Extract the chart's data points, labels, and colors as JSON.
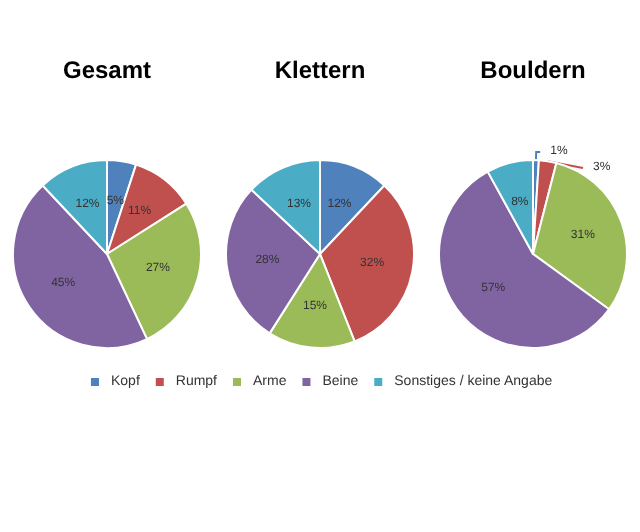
{
  "chart_data": [
    {
      "type": "pie",
      "title": "Gesamt",
      "categories": [
        null,
        null,
        null,
        null,
        null
      ],
      "values": [
        5,
        11,
        27,
        45,
        12
      ],
      "value_labels": [
        "5%",
        "11%",
        "27%",
        "45%",
        "12%"
      ],
      "colors": [
        "#4f81bd",
        "#c0504d",
        "#9bbb59",
        "#8064a2",
        "#4bacc6"
      ]
    },
    {
      "type": "pie",
      "title": "Klettern",
      "categories": [
        "Kopf",
        "Rumpf",
        "Arme",
        "Beine",
        "Sonstiges / keine Angabe"
      ],
      "values": [
        12,
        32,
        15,
        28,
        13
      ],
      "value_labels": [
        "12%",
        "32%",
        "15%",
        "28%",
        "13%"
      ],
      "colors": [
        "#4f81bd",
        "#c0504d",
        "#9bbb59",
        "#8064a2",
        "#4bacc6"
      ],
      "legend": "bottom"
    },
    {
      "type": "pie",
      "title": "Bouldern",
      "categories": [
        null,
        null,
        null,
        null,
        null
      ],
      "values": [
        1,
        3,
        31,
        57,
        8
      ],
      "value_labels": [
        "1%",
        "3%",
        "31%",
        "57%",
        "8%"
      ],
      "colors": [
        "#4f81bd",
        "#c0504d",
        "#9bbb59",
        "#8064a2",
        "#4bacc6"
      ]
    }
  ]
}
